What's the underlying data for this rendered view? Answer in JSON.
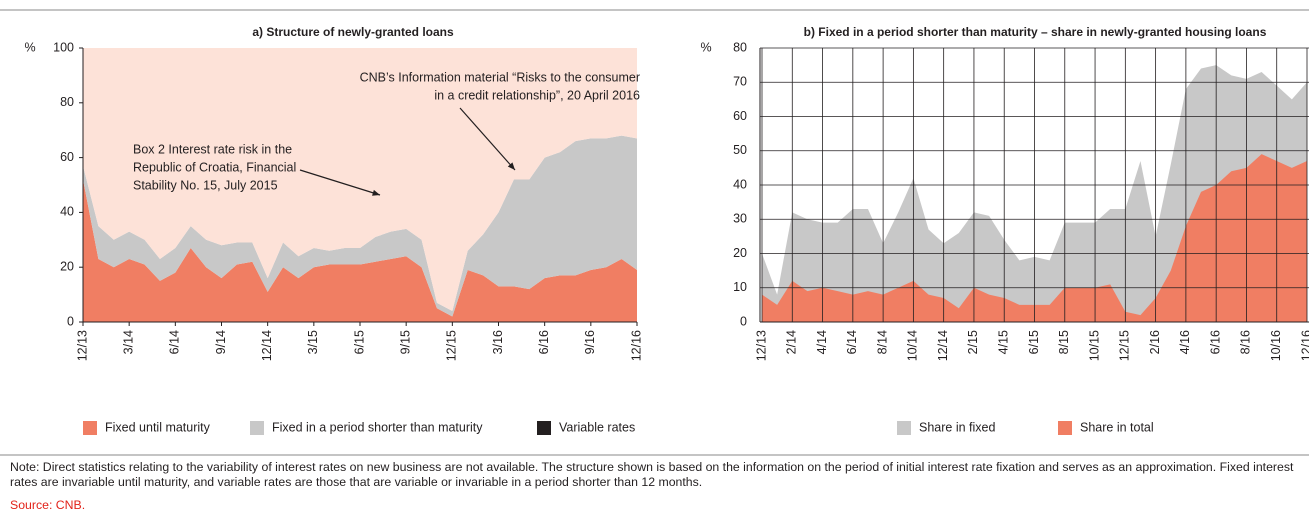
{
  "chart_data": [
    {
      "type": "area",
      "stacked": true,
      "title": "a) Structure of newly-granted loans",
      "y_unit": "%",
      "categories": [
        "12/13",
        null,
        null,
        "3/14",
        null,
        null,
        "6/14",
        null,
        null,
        "9/14",
        null,
        null,
        "12/14",
        null,
        null,
        "3/15",
        null,
        null,
        "6/15",
        null,
        null,
        "9/15",
        null,
        null,
        "12/15",
        null,
        null,
        "3/16",
        null,
        null,
        "6/16",
        null,
        null,
        "9/16",
        null,
        null,
        "12/16"
      ],
      "series": [
        {
          "name": "Fixed until maturity",
          "color": "#f07e63",
          "values": [
            52,
            23,
            20,
            23,
            21,
            15,
            18,
            27,
            20,
            16,
            21,
            22,
            11,
            20,
            16,
            20,
            21,
            21,
            21,
            22,
            23,
            24,
            20,
            5,
            2,
            19,
            17,
            13,
            13,
            12,
            16,
            17,
            17,
            19,
            20,
            23,
            19
          ]
        },
        {
          "name": "Fixed in a period shorter than maturity",
          "color": "#c8c8c8",
          "values": [
            5,
            12,
            10,
            10,
            9,
            8,
            9,
            8,
            10,
            12,
            8,
            7,
            5,
            9,
            8,
            7,
            5,
            6,
            6,
            9,
            10,
            10,
            10,
            2,
            2,
            7,
            15,
            27,
            39,
            40,
            44,
            45,
            49,
            48,
            47,
            45,
            48
          ]
        },
        {
          "name": "Variable rates",
          "color": "#fde2d8",
          "legend_color": "#231f20",
          "values": [
            43,
            65,
            70,
            67,
            70,
            77,
            73,
            65,
            70,
            72,
            71,
            71,
            84,
            71,
            76,
            73,
            74,
            73,
            73,
            69,
            67,
            66,
            70,
            93,
            96,
            74,
            68,
            60,
            48,
            48,
            40,
            38,
            34,
            33,
            33,
            32,
            33
          ]
        }
      ],
      "ylim": [
        0,
        100
      ],
      "yticks": [
        0,
        20,
        40,
        60,
        80,
        100
      ],
      "annotations": [
        {
          "lines": [
            "CNB’s Information material “Risks to the consumer",
            "in a credit relationship”, 20 April 2016"
          ]
        },
        {
          "lines": [
            "Box 2 Interest rate risk in the",
            "Republic of Croatia, Financial",
            "Stability No. 15, July 2015"
          ]
        }
      ]
    },
    {
      "type": "area",
      "stacked": false,
      "grid": true,
      "title": "b) Fixed in a period shorter than maturity – share in newly-granted housing loans",
      "y_unit": "%",
      "categories": [
        "12/13",
        null,
        "2/14",
        null,
        "4/14",
        null,
        "6/14",
        null,
        "8/14",
        null,
        "10/14",
        null,
        "12/14",
        null,
        "2/15",
        null,
        "4/15",
        null,
        "6/15",
        null,
        "8/15",
        null,
        "10/15",
        null,
        "12/15",
        null,
        "2/16",
        null,
        "4/16",
        null,
        "6/16",
        null,
        "8/16",
        null,
        "10/16",
        null,
        "12/16"
      ],
      "series": [
        {
          "name": "Share in fixed",
          "color": "#c8c8c8",
          "values": [
            20,
            8,
            32,
            30,
            29,
            29,
            33,
            33,
            23,
            32,
            42,
            27,
            23,
            26,
            32,
            31,
            24,
            18,
            19,
            18,
            29,
            29,
            29,
            33,
            33,
            47,
            25,
            46,
            68,
            74,
            75,
            72,
            71,
            73,
            69,
            65,
            70
          ]
        },
        {
          "name": "Share in total",
          "color": "#f07e63",
          "values": [
            8,
            5,
            12,
            9,
            10,
            9,
            8,
            9,
            8,
            10,
            12,
            8,
            7,
            4,
            10,
            8,
            7,
            5,
            5,
            5,
            10,
            10,
            10,
            11,
            3,
            2,
            7,
            15,
            28,
            38,
            40,
            44,
            45,
            49,
            47,
            45,
            47
          ]
        }
      ],
      "ylim": [
        0,
        80
      ],
      "yticks": [
        0,
        10,
        20,
        30,
        40,
        50,
        60,
        70,
        80
      ]
    }
  ],
  "note": "Note: Direct statistics relating to the variability of interest rates on new business are not available. The structure shown is based on the information on the period of initial interest rate fixation and serves as an approximation. Fixed interest rates are invariable until maturity, and variable rates are those that are variable or invariable in a period shorter than 12 months.",
  "source": "Source: CNB."
}
